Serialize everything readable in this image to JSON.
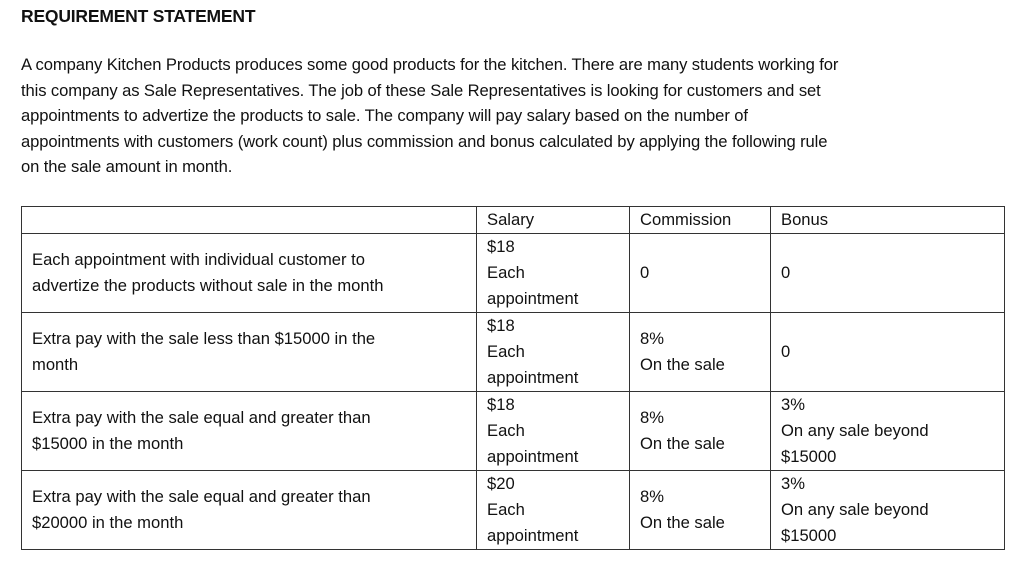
{
  "heading": "REQUIREMENT STATEMENT",
  "paragraph_lines": [
    "A company Kitchen Products produces some good products for the kitchen. There are many students working for",
    "this company as Sale Representatives. The job of these Sale Representatives is looking for customers and set",
    "appointments to advertize the products to sale. The company will pay salary based on the number of",
    "appointments with customers (work count)  plus commission and bonus calculated by applying the following rule",
    "on the sale amount in month."
  ],
  "table": {
    "headers": [
      "",
      "Salary",
      "Commission",
      "Bonus"
    ],
    "rows": [
      {
        "desc": [
          "Each appointment with individual customer to",
          "advertize the products without sale in the month"
        ],
        "salary": [
          "$18",
          "Each",
          "appointment"
        ],
        "commission": [
          "0"
        ],
        "bonus": [
          "0"
        ]
      },
      {
        "desc": [
          "Extra pay with the sale less than $15000 in the",
          "month"
        ],
        "salary": [
          "$18",
          "Each",
          "appointment"
        ],
        "commission": [
          "8%",
          "On the sale"
        ],
        "bonus": [
          "0"
        ]
      },
      {
        "desc": [
          "Extra pay with the sale equal and greater than",
          "$15000 in the month"
        ],
        "salary": [
          "$18",
          "Each",
          "appointment"
        ],
        "commission": [
          "8%",
          "On the sale"
        ],
        "bonus": [
          "3%",
          "On any sale beyond",
          "$15000"
        ]
      },
      {
        "desc": [
          "Extra pay with the sale equal and greater than",
          "$20000 in the month"
        ],
        "salary": [
          "$20",
          "Each",
          "appointment"
        ],
        "commission": [
          "8%",
          "On the sale"
        ],
        "bonus": [
          "3%",
          "On any sale beyond",
          "$15000"
        ]
      }
    ]
  }
}
